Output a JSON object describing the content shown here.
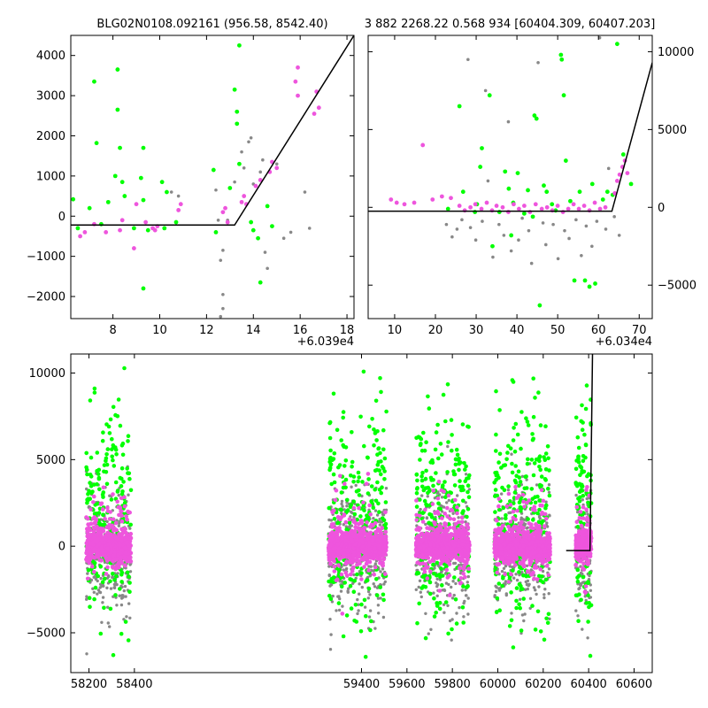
{
  "colors": {
    "green": "#00ff00",
    "magenta": "#ee55dd",
    "gray": "#888888",
    "model": "#000000",
    "axis": "#000000"
  },
  "titles": {
    "left": "BLG02N0108.092161 (956.58, 8542.40)",
    "right": "3 882 2268.22 0.568 934 [60404.309, 60407.203]"
  },
  "chart_data": [
    {
      "id": "top_left",
      "type": "scatter",
      "title": "BLG02N0108.092161 (956.58, 8542.40)",
      "xlim": [
        6.2,
        18.3
      ],
      "ylim": [
        -2550,
        4500
      ],
      "x_offset_label": "+6.039e4",
      "xticks": [
        8,
        10,
        12,
        14,
        16,
        18
      ],
      "yticks": [
        -2000,
        -1000,
        0,
        1000,
        2000,
        3000,
        4000
      ],
      "y_axis_side": "left",
      "grid": false,
      "model_line": [
        [
          6.2,
          -220
        ],
        [
          13.2,
          -220
        ],
        [
          18.3,
          4500
        ]
      ],
      "series": [
        {
          "color": "green",
          "points": [
            [
              6.3,
              420
            ],
            [
              6.5,
              -300
            ],
            [
              7.0,
              200
            ],
            [
              7.2,
              3350
            ],
            [
              7.3,
              1820
            ],
            [
              7.5,
              -200
            ],
            [
              7.8,
              350
            ],
            [
              8.1,
              1000
            ],
            [
              8.2,
              3650
            ],
            [
              8.2,
              2650
            ],
            [
              8.3,
              1700
            ],
            [
              8.4,
              850
            ],
            [
              8.5,
              500
            ],
            [
              8.9,
              -300
            ],
            [
              9.2,
              950
            ],
            [
              9.3,
              1700
            ],
            [
              9.3,
              400
            ],
            [
              9.5,
              -350
            ],
            [
              9.3,
              -1800
            ],
            [
              10.1,
              850
            ],
            [
              10.2,
              -300
            ],
            [
              10.3,
              600
            ],
            [
              10.7,
              -150
            ],
            [
              12.3,
              1150
            ],
            [
              12.4,
              -400
            ],
            [
              13.0,
              700
            ],
            [
              13.2,
              3150
            ],
            [
              13.3,
              2600
            ],
            [
              13.3,
              2300
            ],
            [
              13.4,
              1300
            ],
            [
              13.4,
              4250
            ],
            [
              13.9,
              -150
            ],
            [
              14.0,
              -350
            ],
            [
              14.2,
              -550
            ],
            [
              14.3,
              -1650
            ],
            [
              14.6,
              250
            ],
            [
              14.8,
              -250
            ]
          ]
        },
        {
          "color": "magenta",
          "points": [
            [
              6.6,
              -500
            ],
            [
              6.8,
              -400
            ],
            [
              7.2,
              -200
            ],
            [
              7.7,
              -400
            ],
            [
              8.3,
              -350
            ],
            [
              8.4,
              -100
            ],
            [
              8.9,
              -800
            ],
            [
              9.0,
              300
            ],
            [
              9.4,
              -150
            ],
            [
              9.7,
              -300
            ],
            [
              9.8,
              -350
            ],
            [
              9.9,
              -250
            ],
            [
              10.8,
              150
            ],
            [
              10.9,
              300
            ],
            [
              12.7,
              100
            ],
            [
              12.8,
              200
            ],
            [
              12.9,
              -150
            ],
            [
              13.5,
              350
            ],
            [
              13.6,
              500
            ],
            [
              13.7,
              300
            ],
            [
              14.1,
              750
            ],
            [
              14.3,
              900
            ],
            [
              14.7,
              1100
            ],
            [
              14.8,
              1350
            ],
            [
              15.0,
              1200
            ],
            [
              15.8,
              3350
            ],
            [
              15.9,
              3700
            ],
            [
              15.9,
              3000
            ],
            [
              16.6,
              2550
            ],
            [
              16.7,
              3100
            ],
            [
              16.8,
              2700
            ]
          ]
        },
        {
          "color": "gray",
          "points": [
            [
              10.5,
              600
            ],
            [
              10.8,
              500
            ],
            [
              12.4,
              650
            ],
            [
              12.5,
              -100
            ],
            [
              12.6,
              -1100
            ],
            [
              12.7,
              -850
            ],
            [
              12.7,
              -1950
            ],
            [
              12.7,
              -2300
            ],
            [
              12.9,
              -100
            ],
            [
              13.2,
              850
            ],
            [
              13.5,
              1600
            ],
            [
              13.6,
              1200
            ],
            [
              13.8,
              1850
            ],
            [
              13.9,
              1950
            ],
            [
              14.0,
              800
            ],
            [
              14.3,
              1100
            ],
            [
              14.4,
              1400
            ],
            [
              14.5,
              -900
            ],
            [
              15.0,
              1300
            ],
            [
              15.3,
              -550
            ],
            [
              15.6,
              -400
            ],
            [
              16.4,
              -300
            ],
            [
              16.2,
              600
            ],
            [
              14.6,
              -1300
            ],
            [
              12.6,
              -2500
            ]
          ]
        }
      ]
    },
    {
      "id": "top_right",
      "type": "scatter",
      "xlim": [
        3.5,
        73.2
      ],
      "ylim": [
        -7150,
        11050
      ],
      "x_offset_label": "+6.034e4",
      "xticks": [
        10,
        20,
        30,
        40,
        50,
        60,
        70
      ],
      "yticks": [
        -5000,
        0,
        5000,
        10000
      ],
      "y_axis_side": "right",
      "grid": false,
      "model_line": [
        [
          3.5,
          -250
        ],
        [
          63.3,
          -250
        ],
        [
          73.2,
          9300
        ]
      ],
      "series": [
        {
          "color": "green",
          "points": [
            [
              23.1,
              -100
            ],
            [
              25.9,
              6500
            ],
            [
              26.8,
              1000
            ],
            [
              29.7,
              -300
            ],
            [
              30.2,
              200
            ],
            [
              31.0,
              2600
            ],
            [
              31.4,
              3800
            ],
            [
              33.3,
              7200
            ],
            [
              34.0,
              -2500
            ],
            [
              35.7,
              -300
            ],
            [
              37.1,
              2300
            ],
            [
              38.0,
              1200
            ],
            [
              38.6,
              -1800
            ],
            [
              39.1,
              300
            ],
            [
              40.2,
              2200
            ],
            [
              41.8,
              -400
            ],
            [
              42.7,
              1100
            ],
            [
              43.9,
              -600
            ],
            [
              44.3,
              5900
            ],
            [
              44.8,
              5700
            ],
            [
              45.6,
              -6300
            ],
            [
              46.6,
              1400
            ],
            [
              47.3,
              1000
            ],
            [
              48.6,
              200
            ],
            [
              49.5,
              -200
            ],
            [
              50.8,
              9800
            ],
            [
              51.0,
              9500
            ],
            [
              51.5,
              7200
            ],
            [
              52.0,
              3000
            ],
            [
              53.1,
              400
            ],
            [
              54.1,
              -4700
            ],
            [
              55.4,
              1000
            ],
            [
              56.7,
              -4700
            ],
            [
              57.8,
              -5100
            ],
            [
              58.5,
              1500
            ],
            [
              59.2,
              -4900
            ],
            [
              61.1,
              500
            ],
            [
              62.2,
              1000
            ],
            [
              63.5,
              800
            ],
            [
              64.6,
              10500
            ],
            [
              66.1,
              3400
            ],
            [
              68.0,
              1500
            ]
          ]
        },
        {
          "color": "magenta",
          "points": [
            [
              9.1,
              500
            ],
            [
              10.5,
              300
            ],
            [
              12.4,
              200
            ],
            [
              14.8,
              300
            ],
            [
              16.9,
              4000
            ],
            [
              19.3,
              500
            ],
            [
              21.6,
              700
            ],
            [
              23.8,
              600
            ],
            [
              25.9,
              100
            ],
            [
              27.2,
              -200
            ],
            [
              28.6,
              0
            ],
            [
              29.8,
              200
            ],
            [
              31.3,
              -100
            ],
            [
              32.6,
              300
            ],
            [
              33.9,
              -200
            ],
            [
              35.0,
              100
            ],
            [
              36.5,
              0
            ],
            [
              37.9,
              -300
            ],
            [
              39.2,
              200
            ],
            [
              40.5,
              -100
            ],
            [
              41.8,
              100
            ],
            [
              43.2,
              -300
            ],
            [
              44.6,
              200
            ],
            [
              46.1,
              -100
            ],
            [
              47.4,
              0
            ],
            [
              48.7,
              -200
            ],
            [
              50.0,
              100
            ],
            [
              51.3,
              -300
            ],
            [
              52.6,
              -100
            ],
            [
              53.9,
              200
            ],
            [
              55.2,
              -100
            ],
            [
              56.5,
              100
            ],
            [
              57.8,
              -200
            ],
            [
              59.1,
              300
            ],
            [
              60.4,
              -100
            ],
            [
              61.7,
              0
            ],
            [
              64.0,
              900
            ],
            [
              64.6,
              1700
            ],
            [
              65.2,
              2100
            ],
            [
              65.9,
              2600
            ],
            [
              66.5,
              3000
            ],
            [
              67.1,
              2200
            ]
          ]
        },
        {
          "color": "gray",
          "points": [
            [
              22.7,
              -1100
            ],
            [
              24.1,
              -1900
            ],
            [
              25.3,
              -1400
            ],
            [
              26.5,
              -800
            ],
            [
              28.0,
              9500
            ],
            [
              28.6,
              -1300
            ],
            [
              29.9,
              -2100
            ],
            [
              31.5,
              -900
            ],
            [
              32.3,
              7500
            ],
            [
              32.9,
              1700
            ],
            [
              34.1,
              -3200
            ],
            [
              35.6,
              -1100
            ],
            [
              36.8,
              -1800
            ],
            [
              37.9,
              5500
            ],
            [
              38.6,
              -2800
            ],
            [
              40.4,
              -2100
            ],
            [
              41.3,
              -700
            ],
            [
              42.9,
              -1500
            ],
            [
              43.6,
              -3600
            ],
            [
              45.2,
              9300
            ],
            [
              46.4,
              -1000
            ],
            [
              47.1,
              -2400
            ],
            [
              48.9,
              -1100
            ],
            [
              50.1,
              -3300
            ],
            [
              51.7,
              -1500
            ],
            [
              52.8,
              -2000
            ],
            [
              54.5,
              -800
            ],
            [
              55.8,
              -3100
            ],
            [
              57.0,
              -1200
            ],
            [
              58.4,
              -2500
            ],
            [
              59.6,
              -900
            ],
            [
              60.3,
              10900
            ],
            [
              61.8,
              -1400
            ],
            [
              62.5,
              2500
            ],
            [
              63.9,
              -600
            ],
            [
              65.1,
              -1800
            ],
            [
              66.4,
              3000
            ]
          ]
        }
      ]
    },
    {
      "id": "bottom",
      "type": "scatter",
      "xlim": [
        58120,
        60680
      ],
      "ylim": [
        -7300,
        11100
      ],
      "xticks": [
        58200,
        58400,
        59400,
        59600,
        59800,
        60000,
        60200,
        60400,
        60600
      ],
      "yticks": [
        -5000,
        0,
        5000,
        10000
      ],
      "y_axis_side": "left",
      "grid": false,
      "clusters": [
        [
          58188,
          58385
        ],
        [
          59255,
          59510
        ],
        [
          59640,
          59875
        ],
        [
          59985,
          60230
        ],
        [
          60343,
          60412
        ]
      ],
      "model_line": [
        [
          60301,
          -250
        ],
        [
          60406,
          -250
        ],
        [
          60417,
          11100
        ]
      ]
    }
  ]
}
